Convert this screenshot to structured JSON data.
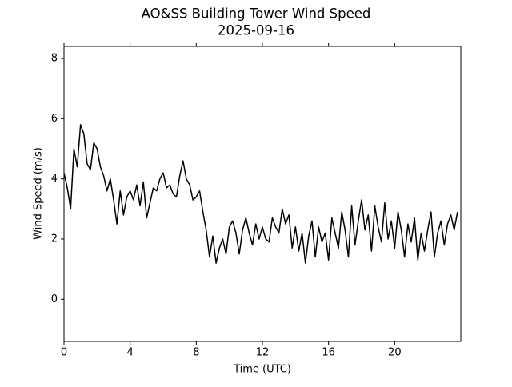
{
  "chart_data": {
    "type": "line",
    "title": "AO&SS Building Tower Wind Speed",
    "subtitle": "2025-09-16",
    "x_label": "Time (UTC)",
    "y_label": "Wind Speed (m/s)",
    "x": [
      0.0,
      0.2,
      0.4,
      0.6,
      0.8,
      1.0,
      1.2,
      1.4,
      1.6,
      1.8,
      2.0,
      2.2,
      2.4,
      2.6,
      2.8,
      3.0,
      3.2,
      3.4,
      3.6,
      3.8,
      4.0,
      4.2,
      4.4,
      4.6,
      4.8,
      5.0,
      5.2,
      5.4,
      5.6,
      5.8,
      6.0,
      6.2,
      6.4,
      6.6,
      6.8,
      7.0,
      7.2,
      7.4,
      7.6,
      7.8,
      8.0,
      8.2,
      8.4,
      8.6,
      8.8,
      9.0,
      9.2,
      9.4,
      9.6,
      9.8,
      10.0,
      10.2,
      10.4,
      10.6,
      10.8,
      11.0,
      11.2,
      11.4,
      11.6,
      11.8,
      12.0,
      12.2,
      12.4,
      12.6,
      12.8,
      13.0,
      13.2,
      13.4,
      13.6,
      13.8,
      14.0,
      14.2,
      14.4,
      14.6,
      14.8,
      15.0,
      15.2,
      15.4,
      15.6,
      15.8,
      16.0,
      16.2,
      16.4,
      16.6,
      16.8,
      17.0,
      17.2,
      17.4,
      17.6,
      17.8,
      18.0,
      18.2,
      18.4,
      18.6,
      18.8,
      19.0,
      19.2,
      19.4,
      19.6,
      19.8,
      20.0,
      20.2,
      20.4,
      20.6,
      20.8,
      21.0,
      21.2,
      21.4,
      21.6,
      21.8,
      22.0,
      22.2,
      22.4,
      22.6,
      22.8,
      23.0,
      23.2,
      23.4,
      23.6,
      23.8
    ],
    "series": [
      {
        "name": "Wind Speed",
        "color": "#000000",
        "values": [
          4.2,
          3.7,
          3.0,
          5.0,
          4.4,
          5.8,
          5.5,
          4.5,
          4.3,
          5.2,
          5.0,
          4.4,
          4.1,
          3.6,
          4.0,
          3.3,
          2.5,
          3.6,
          2.8,
          3.4,
          3.6,
          3.3,
          3.8,
          3.1,
          3.9,
          2.7,
          3.2,
          3.7,
          3.6,
          4.0,
          4.2,
          3.7,
          3.8,
          3.5,
          3.4,
          4.1,
          4.6,
          4.0,
          3.8,
          3.3,
          3.4,
          3.6,
          2.9,
          2.3,
          1.4,
          2.1,
          1.2,
          1.7,
          2.0,
          1.5,
          2.4,
          2.6,
          2.2,
          1.5,
          2.3,
          2.7,
          2.2,
          1.8,
          2.5,
          2.0,
          2.4,
          2.0,
          1.9,
          2.7,
          2.4,
          2.2,
          3.0,
          2.5,
          2.8,
          1.7,
          2.4,
          1.6,
          2.2,
          1.2,
          2.1,
          2.6,
          1.4,
          2.4,
          1.9,
          2.2,
          1.3,
          2.7,
          2.2,
          1.7,
          2.9,
          2.3,
          1.4,
          3.1,
          1.8,
          2.6,
          3.3,
          2.3,
          2.8,
          1.6,
          3.1,
          2.4,
          1.9,
          3.2,
          2.0,
          2.6,
          1.7,
          2.9,
          2.3,
          1.4,
          2.5,
          1.9,
          2.7,
          1.3,
          2.2,
          1.6,
          2.3,
          2.9,
          1.4,
          2.2,
          2.6,
          1.8,
          2.5,
          2.8,
          2.3,
          2.9
        ]
      }
    ],
    "xlim": [
      0,
      24
    ],
    "xticks": [
      0,
      4,
      8,
      12,
      16,
      20
    ],
    "ylim": [
      -1.4,
      8.4
    ],
    "yticks": [
      0,
      2,
      4,
      6,
      8
    ]
  }
}
